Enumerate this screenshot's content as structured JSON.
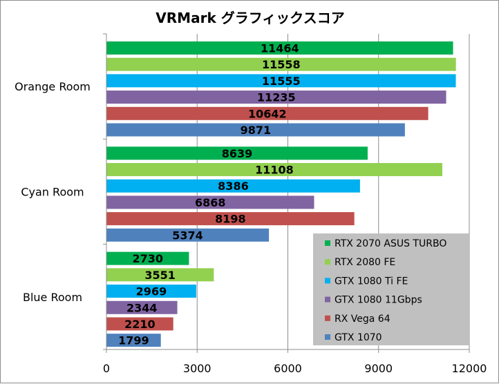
{
  "chart_data": {
    "type": "bar",
    "orientation": "horizontal",
    "title": "VRMark グラフィックスコア",
    "categories": [
      "Orange Room",
      "Cyan Room",
      "Blue Room"
    ],
    "series": [
      {
        "name": "RTX 2070 ASUS TURBO",
        "color": "#00b050",
        "values": [
          11464,
          8639,
          2730
        ]
      },
      {
        "name": "RTX 2080 FE",
        "color": "#92d050",
        "values": [
          11558,
          11108,
          3551
        ]
      },
      {
        "name": "GTX 1080 Ti FE",
        "color": "#00b0f0",
        "values": [
          11555,
          8386,
          2969
        ]
      },
      {
        "name": "GTX 1080 11Gbps",
        "color": "#8064a2",
        "values": [
          11235,
          6868,
          2344
        ]
      },
      {
        "name": "RX Vega 64",
        "color": "#c0504d",
        "values": [
          10642,
          8198,
          2210
        ]
      },
      {
        "name": "GTX 1070",
        "color": "#4f81bd",
        "values": [
          9871,
          5374,
          1799
        ]
      }
    ],
    "xlim": [
      0,
      12000
    ],
    "xticks": [
      "0",
      "3000",
      "6000",
      "9000",
      "12000"
    ],
    "grid": true,
    "data_labels": true,
    "legend_position": "bottom-right"
  }
}
